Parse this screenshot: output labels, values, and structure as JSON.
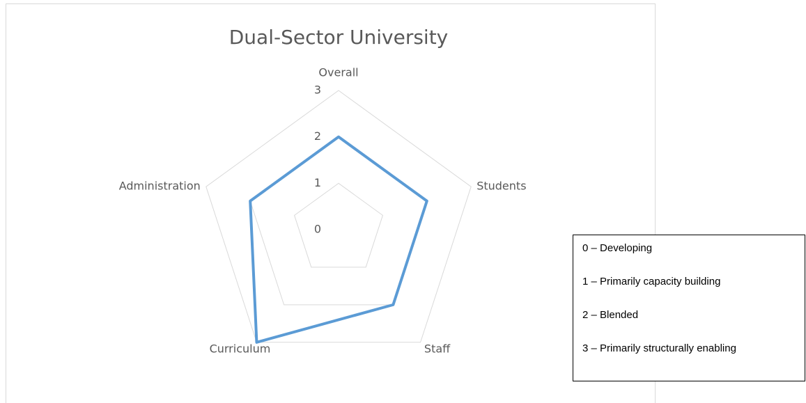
{
  "chart_data": {
    "type": "radar",
    "title": "Dual-Sector University",
    "categories": [
      "Overall",
      "Students",
      "Staff",
      "Curriculum",
      "Administration"
    ],
    "values": [
      2,
      2,
      2,
      3,
      2
    ],
    "color": "#5b9bd5",
    "rlim": [
      0,
      3
    ],
    "rticks": [
      0,
      1,
      2,
      3
    ],
    "grid": true,
    "annotations": [
      "0 – Developing",
      "1 – Primarily capacity building",
      "2 – Blended",
      "3 – Primarily structurally enabling"
    ]
  }
}
